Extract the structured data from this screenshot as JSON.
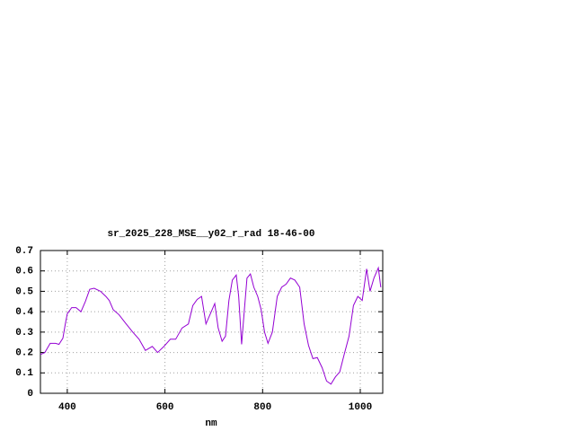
{
  "chart_data": {
    "type": "line",
    "title": "sr_2025_228_MSE__y02_r_rad 18-46-00",
    "xlabel": "nm",
    "xlim": [
      345,
      1046
    ],
    "xticks": [
      400,
      600,
      800,
      1000
    ],
    "ylim": [
      0,
      0.7
    ],
    "yticks": [
      0,
      0.1,
      0.2,
      0.3,
      0.4,
      0.5,
      0.6,
      0.7
    ],
    "grid": true,
    "x": [
      345,
      354,
      365,
      376,
      383,
      391,
      396,
      400,
      409,
      418,
      428,
      437,
      446,
      455,
      468,
      479,
      486,
      494,
      506,
      519,
      534,
      547,
      560,
      574,
      585,
      598,
      611,
      622,
      635,
      648,
      657,
      666,
      675,
      684,
      693,
      702,
      709,
      717,
      724,
      731,
      738,
      746,
      751,
      757,
      762,
      768,
      775,
      782,
      790,
      797,
      804,
      811,
      820,
      830,
      839,
      848,
      857,
      866,
      876,
      885,
      894,
      903,
      912,
      922,
      931,
      940,
      949,
      958,
      967,
      977,
      986,
      995,
      1004,
      1013,
      1020,
      1028,
      1037,
      1042
    ],
    "series": [
      {
        "color": "#9400d3",
        "values": [
          0.19,
          0.2,
          0.245,
          0.245,
          0.24,
          0.27,
          0.34,
          0.39,
          0.42,
          0.42,
          0.4,
          0.45,
          0.51,
          0.515,
          0.5,
          0.475,
          0.455,
          0.41,
          0.385,
          0.345,
          0.3,
          0.265,
          0.21,
          0.23,
          0.2,
          0.23,
          0.265,
          0.265,
          0.32,
          0.34,
          0.43,
          0.46,
          0.475,
          0.34,
          0.39,
          0.44,
          0.32,
          0.255,
          0.28,
          0.455,
          0.555,
          0.58,
          0.475,
          0.24,
          0.39,
          0.565,
          0.585,
          0.52,
          0.475,
          0.41,
          0.3,
          0.245,
          0.3,
          0.475,
          0.52,
          0.535,
          0.565,
          0.555,
          0.52,
          0.34,
          0.235,
          0.17,
          0.175,
          0.125,
          0.06,
          0.045,
          0.08,
          0.105,
          0.19,
          0.28,
          0.43,
          0.475,
          0.455,
          0.61,
          0.5,
          0.565,
          0.615,
          0.52
        ]
      }
    ]
  }
}
